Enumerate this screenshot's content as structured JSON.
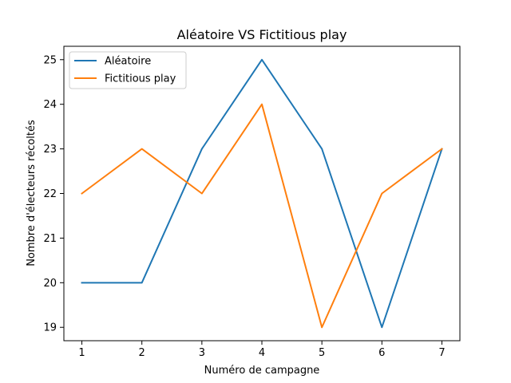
{
  "chart_data": {
    "type": "line",
    "title": "Aléatoire VS Fictitious play",
    "xlabel": "Numéro de campagne",
    "ylabel": "Nombre d'électeurs récoltés",
    "x": [
      1,
      2,
      3,
      4,
      5,
      6,
      7
    ],
    "xticks": [
      "1",
      "2",
      "3",
      "4",
      "5",
      "6",
      "7"
    ],
    "yticks": [
      "19",
      "20",
      "21",
      "22",
      "23",
      "24",
      "25"
    ],
    "xlim": [
      0.7,
      7.3
    ],
    "ylim": [
      18.7,
      25.3
    ],
    "grid": false,
    "legend_position": "upper left",
    "series": [
      {
        "name": "Aléatoire",
        "color": "#1f77b4",
        "values": [
          20,
          20,
          23,
          25,
          23,
          19,
          23
        ]
      },
      {
        "name": "Fictitious play",
        "color": "#ff7f0e",
        "values": [
          22,
          23,
          22,
          24,
          19,
          22,
          23
        ]
      }
    ]
  }
}
